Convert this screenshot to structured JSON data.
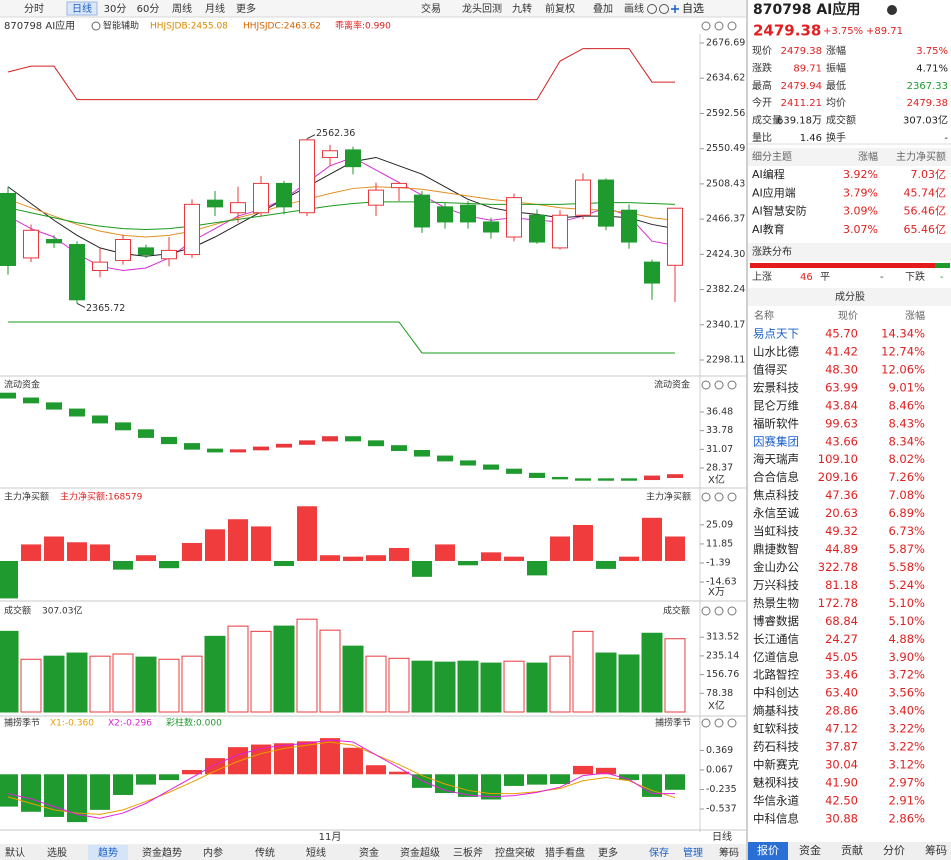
{
  "toolbar": {
    "left": [
      "分时",
      "日线",
      "30分",
      "60分",
      "周线",
      "月线",
      "更多"
    ],
    "active": 1,
    "right": [
      "交易",
      "龙头回测",
      "九转",
      "前复权",
      "叠加",
      "画线"
    ],
    "watch": "自选"
  },
  "header": {
    "code_name": "870798 AI应用",
    "assist": "智能辅助",
    "indicators": [
      "HHJSJDB:2455.08",
      "HHJSJDC:2463.62",
      "乖离率:0.990"
    ]
  },
  "chart_data": [
    {
      "type": "candlestick",
      "open": [
        2497,
        2420,
        2442,
        2436,
        2405,
        2417,
        2432,
        2419,
        2424,
        2489,
        2474,
        2474,
        2509,
        2474,
        2540,
        2549,
        2483,
        2504,
        2495,
        2481,
        2483,
        2463,
        2445,
        2471,
        2432,
        2471,
        2513,
        2477,
        2415,
        2411.21
      ],
      "high": [
        2505,
        2460,
        2447,
        2440,
        2432,
        2448,
        2436,
        2445,
        2490,
        2500,
        2505,
        2518,
        2512,
        2562.36,
        2555,
        2553,
        2510,
        2511,
        2500,
        2486,
        2488,
        2468,
        2497,
        2478,
        2477,
        2521,
        2515,
        2484,
        2418,
        2479.94
      ],
      "low": [
        2400,
        2415,
        2432,
        2365.72,
        2397,
        2412,
        2420,
        2410,
        2420,
        2470,
        2462,
        2470,
        2472,
        2470,
        2530,
        2520,
        2470,
        2488,
        2450,
        2455,
        2455,
        2443,
        2440,
        2437,
        2430,
        2466,
        2453,
        2431,
        2370,
        2367.33
      ],
      "close": [
        2411,
        2453,
        2438,
        2370,
        2415,
        2442,
        2424,
        2429,
        2484,
        2481,
        2486,
        2509,
        2481,
        2561,
        2548,
        2529,
        2501,
        2509,
        2457,
        2463,
        2463,
        2451,
        2492,
        2439,
        2471,
        2513,
        2458,
        2439,
        2390,
        2479.38
      ],
      "up_color": "#e8383d",
      "down_color": "#1e9a2e",
      "lines": [
        {
          "color": "#d62fd6",
          "values": [
            2470,
            2455,
            2445,
            2425,
            2410,
            2405,
            2408,
            2420,
            2440,
            2455,
            2470,
            2478,
            2490,
            2510,
            2530,
            2540,
            2525,
            2510,
            2495,
            2480,
            2470,
            2465,
            2468,
            2465,
            2463,
            2470,
            2480,
            2470,
            2440,
            2435
          ]
        },
        {
          "color": "#222222",
          "values": [
            2505,
            2485,
            2465,
            2447,
            2432,
            2425,
            2422,
            2425,
            2432,
            2445,
            2460,
            2475,
            2490,
            2505,
            2520,
            2535,
            2540,
            2530,
            2520,
            2505,
            2490,
            2480,
            2475,
            2472,
            2468,
            2470,
            2470,
            2468,
            2460,
            2455
          ]
        },
        {
          "color": "#e09020",
          "values": [
            2490,
            2480,
            2470,
            2460,
            2452,
            2447,
            2445,
            2447,
            2452,
            2460,
            2468,
            2475,
            2483,
            2490,
            2497,
            2503,
            2505,
            2504,
            2502,
            2498,
            2494,
            2490,
            2487,
            2484,
            2480,
            2478,
            2477,
            2474,
            2468,
            2465
          ]
        },
        {
          "color": "#1a9a1a",
          "values": [
            2480,
            2474,
            2468,
            2462,
            2458,
            2455,
            2454,
            2455,
            2458,
            2462,
            2466,
            2470,
            2474,
            2478,
            2482,
            2485,
            2487,
            2487,
            2487,
            2486,
            2485,
            2484,
            2484,
            2484,
            2484,
            2485,
            2486,
            2486,
            2485,
            2484
          ]
        },
        {
          "color": "#d42020",
          "values": [
            2642,
            2649,
            2649,
            2609,
            2609,
            2609,
            2609,
            2609,
            2609,
            2609,
            2609,
            2609,
            2609,
            2609,
            2609,
            2609,
            2609,
            2609,
            2609,
            2609,
            2609,
            2609,
            2609,
            2609,
            2655,
            2670,
            2670,
            2670,
            2630,
            2630
          ]
        },
        {
          "color": "#1a9a1a",
          "values": [
            2343.5,
            2343.5,
            2343.5,
            2343.5,
            2343.5,
            2343.5,
            2343.5,
            2343.5,
            2343.5,
            2343.5,
            2343.5,
            2343.5,
            2343.5,
            2343.5,
            2343.5,
            2343.5,
            2343.5,
            2343.5,
            2306.5,
            2306.5,
            2306.5,
            2306.5,
            2306.5,
            2306.5,
            2306.5,
            2306.5,
            2306.5,
            2306.5,
            2306.5,
            2306.5
          ]
        }
      ],
      "ylim": [
        2280.2,
        2686.24
      ],
      "yticks": [
        2676.69,
        2634.62,
        2592.56,
        2550.49,
        2508.43,
        2466.37,
        {
          "value": 2424.3,
          "label": "2424.30"
        },
        2382.24,
        2340.17,
        2298.11
      ]
    },
    {
      "type": "candlestick",
      "title": "流动资金",
      "unit": "X亿",
      "open": [
        39.2,
        38.5,
        37.8,
        36.9,
        35.9,
        34.9,
        33.9,
        32.8,
        31.9,
        31.1,
        30.7,
        31.0,
        31.4,
        31.8,
        32.3,
        32.9,
        32.3,
        31.6,
        30.9,
        30.1,
        29.4,
        28.8,
        28.2,
        27.6,
        27.0,
        26.8,
        26.8,
        26.8,
        26.7,
        27.0
      ],
      "close": [
        38.5,
        37.8,
        36.9,
        35.9,
        34.9,
        33.9,
        32.8,
        31.9,
        31.1,
        30.7,
        31.0,
        31.4,
        31.8,
        32.3,
        32.9,
        32.3,
        31.6,
        30.9,
        30.1,
        29.4,
        28.8,
        28.2,
        27.6,
        27.0,
        26.8,
        26.6,
        26.6,
        26.6,
        27.2,
        27.4
      ],
      "up_color": "#e8383d",
      "down_color": "#1e9a2e",
      "ylim": [
        25.62,
        41.4
      ],
      "yticks": [
        36.48,
        33.78,
        31.07,
        28.37
      ]
    },
    {
      "type": "bar",
      "title": "主力净买额",
      "subtitle": "主力净买额:168579",
      "unit": "X万",
      "values": [
        -26,
        11.5,
        17,
        13,
        11.5,
        -6,
        4,
        -5,
        12.5,
        22,
        29,
        24,
        -3.5,
        38,
        4,
        3,
        4,
        9,
        -11,
        11.5,
        -3,
        6,
        3,
        -10,
        17,
        25,
        -5.5,
        3,
        30,
        17
      ],
      "up_color": "#f03c3c",
      "down_color": "#1e9a2e",
      "ylim": [
        -27.1,
        49.3
      ],
      "yticks": [
        25.09,
        11.85,
        -1.39,
        -14.63
      ]
    },
    {
      "type": "volume",
      "title": "成交额",
      "subtitle": "307.03亿",
      "unit": "X亿",
      "values": [
        338,
        221,
        234,
        247,
        234,
        243,
        230,
        221,
        234,
        317,
        360,
        338,
        360,
        389,
        343,
        276,
        234,
        225,
        213,
        209,
        213,
        205,
        213,
        205,
        234,
        338,
        247,
        239,
        330,
        307.03
      ],
      "up_color": "#e8383d",
      "down_color": "#1e9a2e",
      "ylim": [
        -20.95,
        456.8
      ],
      "yticks": [
        313.52,
        235.14,
        156.76,
        78.38
      ]
    },
    {
      "type": "bar",
      "title": "捕捞季节",
      "legend": [
        "X1:-0.360",
        "X2:-0.296",
        "彩柱数:0.000"
      ],
      "values": [
        -0.5,
        -0.58,
        -0.66,
        -0.74,
        -0.55,
        -0.32,
        -0.16,
        -0.09,
        0.067,
        0.25,
        0.42,
        0.46,
        0.48,
        0.51,
        0.56,
        0.41,
        0.14,
        0.04,
        -0.21,
        -0.29,
        -0.35,
        -0.39,
        -0.18,
        -0.16,
        -0.15,
        0.13,
        0.1,
        -0.09,
        -0.35,
        -0.24
      ],
      "up_color": "#f03c3c",
      "down_color": "#1e9a2e",
      "lines": [
        {
          "color": "#e8a000",
          "values": [
            -0.35,
            -0.45,
            -0.55,
            -0.6,
            -0.62,
            -0.55,
            -0.42,
            -0.28,
            -0.12,
            0.05,
            0.2,
            0.32,
            0.4,
            0.45,
            0.5,
            0.45,
            0.3,
            0.15,
            -0.02,
            -0.15,
            -0.25,
            -0.3,
            -0.3,
            -0.27,
            -0.22,
            -0.1,
            -0.05,
            -0.1,
            -0.25,
            -0.36
          ]
        },
        {
          "color": "#e020e0",
          "values": [
            -0.3,
            -0.38,
            -0.5,
            -0.62,
            -0.68,
            -0.6,
            -0.45,
            -0.25,
            -0.05,
            0.15,
            0.3,
            0.4,
            0.45,
            0.48,
            0.53,
            0.5,
            0.3,
            0.1,
            -0.1,
            -0.25,
            -0.32,
            -0.35,
            -0.33,
            -0.28,
            -0.2,
            -0.02,
            0.02,
            -0.08,
            -0.3,
            -0.3
          ]
        }
      ],
      "ylim": [
        -0.893,
        0.84
      ],
      "yticks": [
        0.369,
        0.067,
        -0.235,
        -0.537
      ]
    }
  ],
  "x_label": "11月",
  "period_label": "日线",
  "bottom_tabs": {
    "left": [
      "默认",
      "选股",
      "趋势",
      "资金趋势",
      "内参",
      "传统",
      "短线",
      "资金",
      "资金超级",
      "三板斧",
      "控盘突破",
      "猎手看盘",
      "更多"
    ],
    "active": 2,
    "right": [
      "保存",
      "管理",
      "筹码"
    ]
  },
  "quote": {
    "price": "2479.38",
    "pct": "+3.75%",
    "chg": "+89.71",
    "rows": [
      [
        "现价",
        "2479.38",
        "涨幅",
        "3.75%"
      ],
      [
        "涨跌",
        "89.71",
        "振幅",
        "4.71%"
      ],
      [
        "最高",
        "2479.94",
        "最低",
        "2367.33"
      ],
      [
        "今开",
        "2411.21",
        "均价",
        "2479.38"
      ],
      [
        "成交量",
        "639.18万",
        "成交额",
        "307.03亿"
      ],
      [
        "量比",
        "1.46",
        "换手",
        "-"
      ]
    ]
  },
  "themes": {
    "header": [
      "细分主题",
      "涨幅",
      "主力净买额"
    ],
    "rows": [
      [
        "AI编程",
        "3.92%",
        "7.03亿"
      ],
      [
        "AI应用端",
        "3.79%",
        "45.74亿"
      ],
      [
        "AI智慧安防",
        "3.09%",
        "56.46亿"
      ],
      [
        "AI教育",
        "3.07%",
        "65.46亿"
      ]
    ]
  },
  "distribution": {
    "title": "涨跌分布",
    "labels": [
      "上涨",
      "46",
      "平",
      "-",
      "下跌",
      "-"
    ]
  },
  "constituents": {
    "title": "成分股",
    "header": [
      "名称",
      "现价",
      "涨幅"
    ],
    "linked": [
      0,
      6
    ],
    "rows": [
      [
        "易点天下",
        "45.70",
        "14.34%"
      ],
      [
        "山水比德",
        "41.42",
        "12.74%"
      ],
      [
        "值得买",
        "48.30",
        "12.06%"
      ],
      [
        "宏景科技",
        "63.99",
        "9.01%"
      ],
      [
        "昆仑万维",
        "43.84",
        "8.46%"
      ],
      [
        "福昕软件",
        "99.63",
        "8.43%"
      ],
      [
        "因赛集团",
        "43.66",
        "8.34%"
      ],
      [
        "海天瑞声",
        "109.10",
        "8.02%"
      ],
      [
        "合合信息",
        "209.16",
        "7.26%"
      ],
      [
        "焦点科技",
        "47.36",
        "7.08%"
      ],
      [
        "永信至诚",
        "20.63",
        "6.89%"
      ],
      [
        "当虹科技",
        "49.32",
        "6.73%"
      ],
      [
        "鼎捷数智",
        "44.89",
        "5.87%"
      ],
      [
        "金山办公",
        "322.78",
        "5.58%"
      ],
      [
        "万兴科技",
        "81.18",
        "5.24%"
      ],
      [
        "热景生物",
        "172.78",
        "5.10%"
      ],
      [
        "博睿数据",
        "68.84",
        "5.10%"
      ],
      [
        "长江通信",
        "24.27",
        "4.88%"
      ],
      [
        "亿道信息",
        "45.05",
        "3.90%"
      ],
      [
        "北路智控",
        "33.46",
        "3.72%"
      ],
      [
        "中科创达",
        "63.40",
        "3.56%"
      ],
      [
        "熵基科技",
        "28.86",
        "3.40%"
      ],
      [
        "虹软科技",
        "47.12",
        "3.22%"
      ],
      [
        "药石科技",
        "37.87",
        "3.22%"
      ],
      [
        "中新赛克",
        "30.04",
        "3.12%"
      ],
      [
        "魅视科技",
        "41.90",
        "2.97%"
      ],
      [
        "华信永道",
        "42.50",
        "2.91%"
      ],
      [
        "中科信息",
        "30.88",
        "2.86%"
      ]
    ]
  },
  "side_tabs": {
    "items": [
      "报价",
      "资金",
      "贡献",
      "分价",
      "筹码"
    ],
    "active": 0
  }
}
